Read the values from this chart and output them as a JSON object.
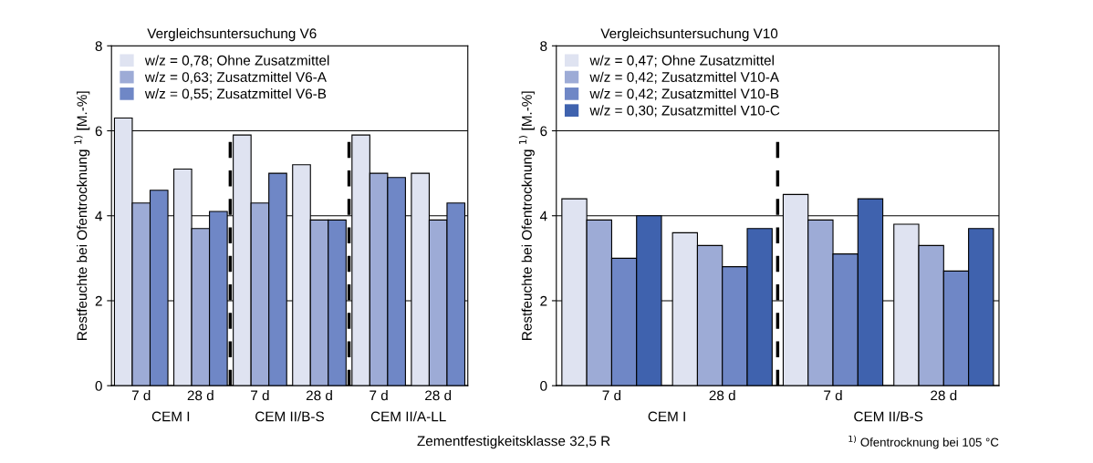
{
  "chart_data": [
    {
      "type": "bar",
      "title": "Vergleichsuntersuchung V6",
      "ylabel": "Restfeuchte bei Ofentrocknung $^{1)}$ [M.-%]",
      "categories": [
        "7 d",
        "28 d",
        "7 d",
        "28 d",
        "7 d",
        "28 d"
      ],
      "series": [
        {
          "name": "w/z = 0,78; Ohne Zusatzmittel",
          "color": "#dfe3f1",
          "values": [
            6.3,
            5.1,
            5.9,
            5.2,
            5.9,
            5.0
          ]
        },
        {
          "name": "w/z = 0,63; Zusatzmittel V6-A",
          "color": "#9dabd6",
          "values": [
            4.3,
            3.7,
            4.3,
            3.9,
            5.0,
            3.9
          ]
        },
        {
          "name": "w/z = 0,55; Zusatzmittel V6-B",
          "color": "#6f87c6",
          "values": [
            4.6,
            4.1,
            5.0,
            3.9,
            4.9,
            4.3
          ]
        }
      ],
      "ylim": [
        0,
        8
      ],
      "yticks": [
        0,
        2,
        4,
        6,
        8
      ],
      "grid": "y",
      "legend": "top left",
      "annotations": [
        "CEM I",
        "CEM II/B-S",
        "CEM II/A-LL",
        "Zementfestigkeitsklasse 32,5 R"
      ]
    },
    {
      "type": "bar",
      "title": "Vergleichsuntersuchung V10",
      "ylabel": "Restfeuchte bei Ofentrocknung $^{1)}$ [M.-%]",
      "categories": [
        "7 d",
        "28 d",
        "7 d",
        "28 d"
      ],
      "series": [
        {
          "name": "w/z = 0,47; Ohne Zusatzmittel",
          "color": "#dfe3f1",
          "values": [
            4.4,
            3.6,
            4.5,
            3.8
          ]
        },
        {
          "name": "w/z = 0,42; Zusatzmittel V10-A",
          "color": "#9dabd6",
          "values": [
            3.9,
            3.3,
            3.9,
            3.3
          ]
        },
        {
          "name": "w/z = 0,42; Zusatzmittel V10-B",
          "color": "#6f87c6",
          "values": [
            3.0,
            2.8,
            3.1,
            2.7
          ]
        },
        {
          "name": "w/z = 0,30; Zusatzmittel V10-C",
          "color": "#3f62ae",
          "values": [
            4.0,
            3.7,
            4.4,
            3.7
          ]
        }
      ],
      "ylim": [
        0,
        8
      ],
      "yticks": [
        0,
        2,
        4,
        6,
        8
      ],
      "grid": "y",
      "legend": "top left",
      "annotations": [
        "CEM I",
        "CEM II/B-S",
        "$^{1)}$ Ofentrocknung bei 105 °C"
      ]
    }
  ]
}
